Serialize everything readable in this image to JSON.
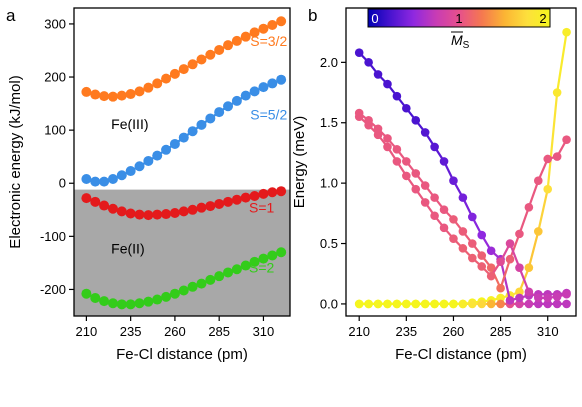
{
  "chart_data": [
    {
      "panel_label": "a",
      "type": "scatter",
      "xlabel": "Fe-Cl distance (pm)",
      "ylabel": "Electronic energy (kJ/mol)",
      "xlim": [
        203,
        325
      ],
      "ylim": [
        -250,
        330
      ],
      "xticks": [
        210,
        235,
        260,
        285,
        310
      ],
      "yticks": [
        -200,
        -100,
        0,
        100,
        200,
        300
      ],
      "shaded_region": {
        "y_from": -250,
        "y_to": -12,
        "color": "#a8a8a8"
      },
      "region_labels": [
        {
          "text": "Fe(III)",
          "x": 224,
          "y": 102
        },
        {
          "text": "Fe(II)",
          "x": 224,
          "y": -132
        }
      ],
      "x": [
        210,
        215,
        220,
        225,
        230,
        235,
        240,
        245,
        250,
        255,
        260,
        265,
        270,
        275,
        280,
        285,
        290,
        295,
        300,
        305,
        310,
        315,
        320
      ],
      "series": [
        {
          "name": "S=3/2",
          "color": "#ff7a1f",
          "label_pos": [
            313,
            258
          ],
          "values": [
            172,
            167,
            164,
            163,
            165,
            168,
            173,
            180,
            188,
            197,
            206,
            215,
            224,
            233,
            242,
            251,
            260,
            268,
            276,
            284,
            291,
            298,
            305
          ]
        },
        {
          "name": "S=5/2",
          "color": "#3a8ee6",
          "label_pos": [
            313,
            120
          ],
          "values": [
            8,
            3,
            3,
            8,
            15,
            23,
            32,
            42,
            52,
            63,
            74,
            86,
            98,
            110,
            122,
            134,
            145,
            155,
            165,
            173,
            181,
            188,
            195
          ]
        },
        {
          "name": "S=1",
          "color": "#e41a1c",
          "label_pos": [
            309,
            -55
          ],
          "values": [
            -28,
            -35,
            -42,
            -48,
            -53,
            -57,
            -59,
            -60,
            -59,
            -58,
            -56,
            -53,
            -50,
            -46,
            -43,
            -39,
            -35,
            -31,
            -27,
            -24,
            -20,
            -17,
            -15
          ]
        },
        {
          "name": "S=2",
          "color": "#33cc1a",
          "label_pos": [
            309,
            -168
          ],
          "values": [
            -208,
            -216,
            -222,
            -226,
            -228,
            -228,
            -226,
            -223,
            -219,
            -214,
            -208,
            -202,
            -195,
            -189,
            -182,
            -175,
            -168,
            -162,
            -155,
            -148,
            -142,
            -136,
            -130
          ]
        }
      ]
    },
    {
      "panel_label": "b",
      "type": "line",
      "xlabel": "Fe-Cl distance (pm)",
      "ylabel": "Energy (meV)",
      "xlim": [
        203,
        325
      ],
      "ylim": [
        -0.1,
        2.45
      ],
      "xticks": [
        210,
        235,
        260,
        285,
        310
      ],
      "yticks": [
        0.0,
        0.5,
        1.0,
        1.5,
        2.0
      ],
      "colorbar": {
        "ticks": [
          "0",
          "1",
          "2"
        ],
        "label": "M",
        "label_sub": "S",
        "colormap": [
          "#0000b3",
          "#4a14d0",
          "#8f28e0",
          "#c83cb4",
          "#e6508c",
          "#f57850",
          "#fbb434",
          "#fde03c",
          "#f5f51e"
        ]
      },
      "x": [
        210,
        215,
        220,
        225,
        230,
        235,
        240,
        245,
        250,
        255,
        260,
        265,
        270,
        275,
        280,
        285,
        290,
        295,
        300,
        305,
        310,
        315,
        320
      ],
      "lines": [
        {
          "values": [
            0.0,
            0.0,
            0.0,
            0.0,
            0.0,
            0.0,
            0.0,
            0.0,
            0.0,
            0.0,
            0.0,
            0.0,
            0.01,
            0.02,
            0.03,
            0.05,
            0.07,
            0.1,
            0.3,
            0.6,
            0.95,
            1.75,
            2.25
          ],
          "m": [
            2.0,
            2.0,
            2.0,
            2.0,
            2.0,
            2.0,
            2.0,
            2.0,
            2.0,
            2.0,
            2.0,
            2.0,
            2.0,
            2.0,
            1.95,
            1.9,
            1.8,
            1.7,
            1.6,
            1.6,
            1.75,
            1.85,
            1.9
          ]
        },
        {
          "values": [
            0.0,
            0.0,
            0.0,
            0.0,
            0.0,
            0.0,
            0.0,
            0.0,
            0.0,
            0.0,
            0.0,
            0.0,
            0.0,
            0.0,
            0.0,
            0.0,
            0.0,
            0.0,
            0.0,
            0.0,
            0.0,
            0.0,
            0.0
          ],
          "m": [
            2.0,
            2.0,
            2.0,
            2.0,
            2.0,
            2.0,
            2.0,
            2.0,
            2.0,
            2.0,
            2.0,
            1.9,
            1.8,
            1.7,
            1.5,
            1.3,
            1.0,
            0.85,
            0.75,
            0.7,
            0.7,
            0.7,
            0.7
          ]
        },
        {
          "values": [
            2.08,
            2.0,
            1.9,
            1.82,
            1.72,
            1.62,
            1.52,
            1.42,
            1.3,
            1.18,
            1.02,
            0.88,
            0.72,
            0.57,
            0.44,
            0.37,
            0.03,
            0.05,
            0.07,
            0.08,
            0.08,
            0.08,
            0.09
          ],
          "m": [
            0.25,
            0.25,
            0.25,
            0.25,
            0.25,
            0.25,
            0.25,
            0.28,
            0.3,
            0.33,
            0.36,
            0.4,
            0.45,
            0.5,
            0.55,
            0.6,
            0.7,
            0.7,
            0.7,
            0.7,
            0.7,
            0.7,
            0.7
          ]
        },
        {
          "values": [
            1.58,
            1.52,
            1.45,
            1.37,
            1.28,
            1.18,
            1.08,
            0.98,
            0.88,
            0.78,
            0.7,
            0.6,
            0.5,
            0.4,
            0.3,
            0.13,
            0.37,
            0.58,
            0.8,
            1.02,
            1.2,
            1.22,
            1.36
          ],
          "m": [
            1.05,
            1.05,
            1.05,
            1.05,
            1.05,
            1.05,
            1.05,
            1.05,
            1.05,
            1.05,
            1.08,
            1.08,
            1.08,
            1.1,
            1.15,
            1.2,
            1.1,
            1.05,
            1.05,
            1.05,
            1.05,
            1.05,
            1.05
          ]
        },
        {
          "values": [
            1.55,
            1.48,
            1.4,
            1.3,
            1.18,
            1.06,
            0.95,
            0.84,
            0.73,
            0.63,
            0.54,
            0.46,
            0.38,
            0.31,
            0.23,
            0.35,
            0.5,
            0.3,
            0.1,
            0.05,
            0.05,
            0.06,
            0.08
          ],
          "m": [
            1.05,
            1.05,
            1.05,
            1.05,
            1.05,
            1.05,
            1.05,
            1.05,
            1.05,
            1.05,
            1.08,
            1.1,
            1.1,
            1.1,
            1.1,
            0.95,
            0.9,
            0.85,
            0.8,
            0.75,
            0.75,
            0.75,
            0.75
          ]
        }
      ]
    }
  ]
}
